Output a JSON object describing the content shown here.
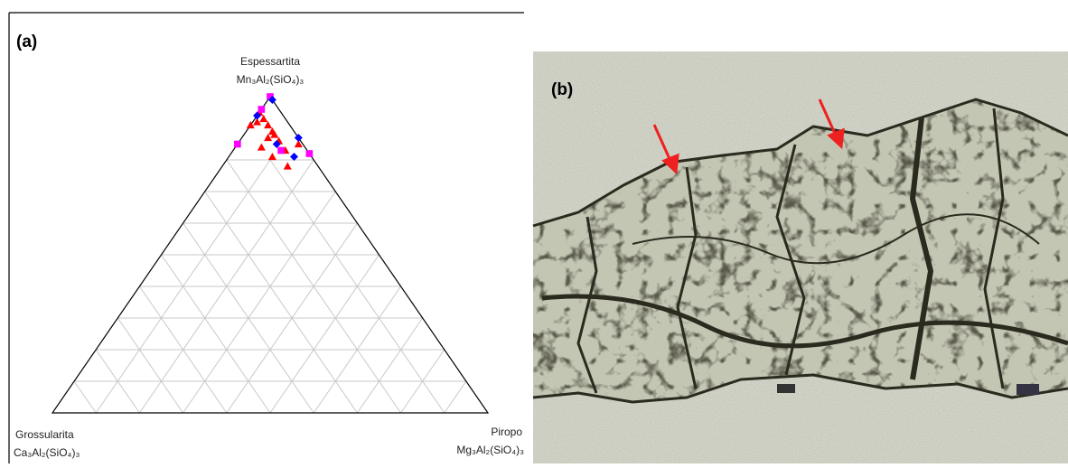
{
  "panel_a": {
    "label": "(a)"
  },
  "panel_b": {
    "label": "(b)"
  },
  "chart_data": {
    "type": "ternary",
    "corners": {
      "top": {
        "name": "Espessartita",
        "formula": "Mn₃Al₂(SiO₄)₃"
      },
      "left": {
        "name": "Grossularita",
        "formula": "Ca₃Al₂(SiO₄)₃"
      },
      "right": {
        "name": "Piropo",
        "formula": "Mg₃Al₂(SiO₄)₃"
      }
    },
    "grid": true,
    "grid_lines": [
      10,
      20,
      30,
      40,
      50,
      60,
      70,
      80,
      90
    ],
    "grid_top": 80,
    "series": [
      {
        "color": "#ff0000",
        "marker": "triangle",
        "points": [
          [
            95,
            5,
            0
          ],
          [
            92,
            7,
            1
          ],
          [
            91,
            9,
            0
          ],
          [
            93,
            5,
            2
          ],
          [
            91,
            5,
            4
          ],
          [
            89,
            5,
            6
          ],
          [
            88,
            5,
            7
          ],
          [
            86,
            5,
            9
          ],
          [
            84,
            10,
            6
          ],
          [
            81,
            9,
            10
          ],
          [
            78,
            7,
            15
          ],
          [
            85,
            1,
            14
          ],
          [
            83,
            5,
            12
          ],
          [
            87,
            7,
            6
          ]
        ]
      },
      {
        "color": "#ff00ff",
        "marker": "square",
        "points": [
          [
            100,
            0,
            0
          ],
          [
            85,
            15,
            0
          ],
          [
            82,
            0,
            18
          ],
          [
            96,
            4,
            0
          ],
          [
            83,
            6,
            11
          ]
        ]
      },
      {
        "color": "#0000ff",
        "marker": "diamond",
        "points": [
          [
            99,
            0,
            1
          ],
          [
            94,
            6,
            0
          ],
          [
            87,
            0,
            13
          ],
          [
            81,
            4,
            15
          ],
          [
            85,
            6,
            9
          ]
        ]
      }
    ]
  }
}
